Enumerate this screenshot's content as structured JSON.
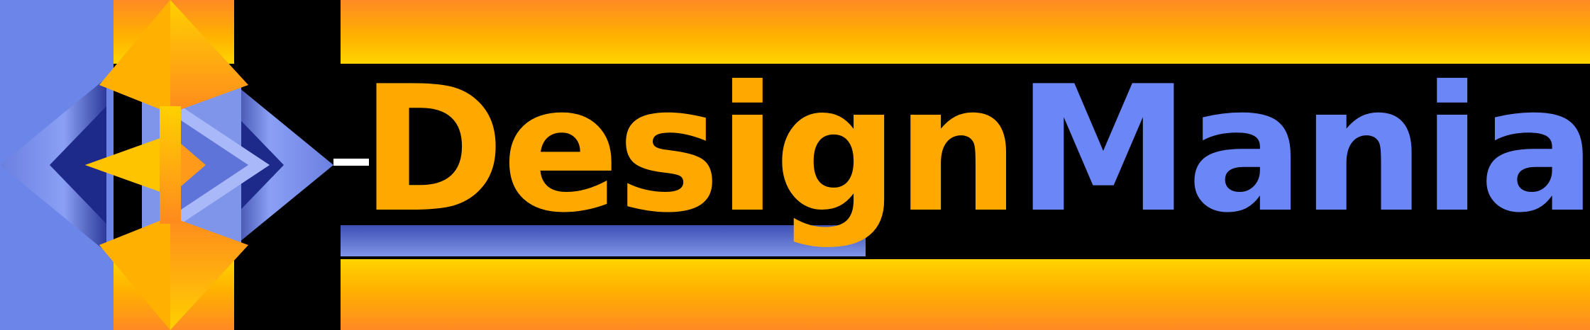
{
  "logo": {
    "word_one": "Design",
    "word_two": "Mania",
    "colors": {
      "word_one": "#ffa800",
      "word_two": "#6b86f7",
      "stripe_orange": "#ff8a24",
      "stripe_yellow": "#ffd400",
      "emblem_blue": "#6b86f7",
      "background": "#000000"
    },
    "emblem_icon": "geometric-diamond-emblem-icon"
  }
}
